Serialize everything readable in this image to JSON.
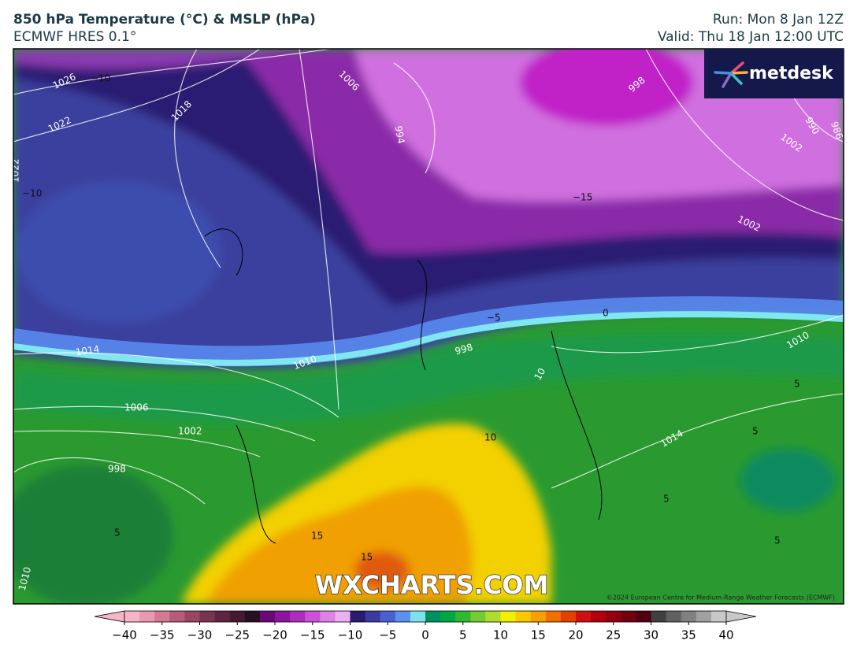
{
  "header": {
    "title": "850 hPa Temperature (°C) & MSLP (hPa)",
    "subtitle": "ECMWF HRES 0.1°",
    "run": "Run: Mon 8 Jan 12Z",
    "valid": "Valid: Thu 18 Jan 12:00 UTC"
  },
  "logo": "metdesk",
  "watermark": "WXCHARTS.COM",
  "copyright": "©2024 European Centre for Medium-Range Weather Forecasts (ECMWF)",
  "map_labels": [
    "1026",
    "−10",
    "1022",
    "1018",
    "1006",
    "1002",
    "998",
    "994",
    "990",
    "986",
    "1022",
    "−10",
    "−15",
    "1002",
    "0",
    "−5",
    "1014",
    "1010",
    "998",
    "1010",
    "1006",
    "1002",
    "998",
    "10",
    "10",
    "5",
    "5",
    "5",
    "1014",
    "5",
    "15",
    "15",
    "5",
    "1010"
  ],
  "colorbar": {
    "range": [
      -40,
      40
    ],
    "ticks": [
      {
        "value": -40,
        "label": "−40"
      },
      {
        "value": -35,
        "label": "−35"
      },
      {
        "value": -30,
        "label": "−30"
      },
      {
        "value": -25,
        "label": "−25"
      },
      {
        "value": -20,
        "label": "−20"
      },
      {
        "value": -15,
        "label": "−15"
      },
      {
        "value": -10,
        "label": "−10"
      },
      {
        "value": -5,
        "label": "−5"
      },
      0,
      5,
      10,
      15,
      20,
      25,
      30,
      35,
      40
    ],
    "colors": [
      "#f4b6c6",
      "#e898b0",
      "#d47894",
      "#b85a7a",
      "#9a4462",
      "#7a3450",
      "#5e2540",
      "#441a32",
      "#2a0f22",
      "#6a0878",
      "#8e14a0",
      "#b02cc0",
      "#cc50d8",
      "#de80e8",
      "#eab0f0",
      "#2a1a70",
      "#3a3aa0",
      "#4a60d0",
      "#5a90f0",
      "#80e0f0",
      "#009060",
      "#00a840",
      "#30b830",
      "#70cc30",
      "#b0dc30",
      "#f0f000",
      "#f8c800",
      "#f8a000",
      "#f07000",
      "#e04000",
      "#d01010",
      "#b00010",
      "#900010",
      "#700010",
      "#500010",
      "#404040",
      "#606060",
      "#808080",
      "#a0a0a0",
      "#c8c8c8"
    ]
  }
}
